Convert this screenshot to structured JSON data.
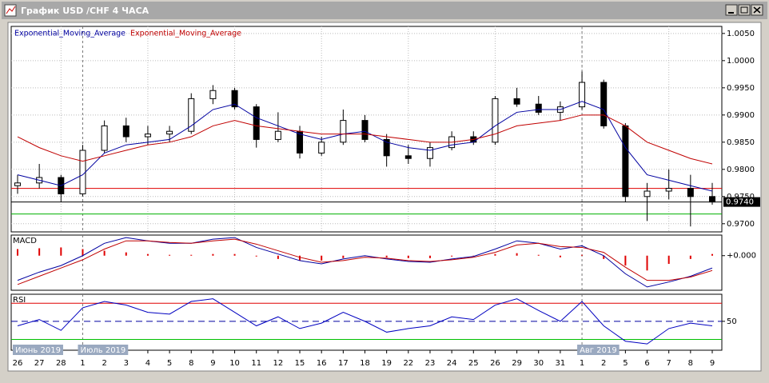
{
  "window": {
    "title": "График USD /CHF  4 ЧАСА"
  },
  "chart_data": [
    {
      "type": "candlestick",
      "categories": [
        "26",
        "27",
        "28",
        "1",
        "2",
        "3",
        "4",
        "5",
        "8",
        "9",
        "10",
        "11",
        "12",
        "15",
        "16",
        "17",
        "18",
        "19",
        "22",
        "23",
        "24",
        "25",
        "26",
        "29",
        "30",
        "31",
        "1",
        "2",
        "5",
        "6",
        "7",
        "8",
        "9"
      ],
      "month_labels": [
        "Июнь 2019",
        null,
        null,
        "Июль 2019",
        null,
        null,
        null,
        null,
        null,
        null,
        null,
        null,
        null,
        null,
        null,
        null,
        null,
        null,
        null,
        null,
        null,
        null,
        null,
        null,
        null,
        null,
        "Авг 2019",
        null,
        null,
        null,
        null,
        null,
        null
      ],
      "open": [
        0.977,
        0.9775,
        0.9785,
        0.9755,
        0.9835,
        0.988,
        0.986,
        0.9865,
        0.987,
        0.993,
        0.9945,
        0.9915,
        0.9855,
        0.987,
        0.983,
        0.985,
        0.989,
        0.9855,
        0.9825,
        0.982,
        0.984,
        0.986,
        0.985,
        0.993,
        0.992,
        0.9905,
        0.9915,
        0.996,
        0.988,
        0.975,
        0.976,
        0.9765,
        0.975
      ],
      "high": [
        0.979,
        0.981,
        0.979,
        0.9845,
        0.989,
        0.9895,
        0.988,
        0.988,
        0.994,
        0.9955,
        0.995,
        0.992,
        0.9905,
        0.988,
        0.986,
        0.991,
        0.99,
        0.9865,
        0.9845,
        0.985,
        0.987,
        0.987,
        0.9935,
        0.995,
        0.9935,
        0.9925,
        0.998,
        0.9965,
        0.9885,
        0.9775,
        0.98,
        0.979,
        0.9775
      ],
      "low": [
        0.9755,
        0.9765,
        0.974,
        0.975,
        0.983,
        0.985,
        0.9845,
        0.985,
        0.9865,
        0.992,
        0.991,
        0.984,
        0.985,
        0.982,
        0.9825,
        0.9845,
        0.985,
        0.9805,
        0.981,
        0.9805,
        0.9835,
        0.9845,
        0.9845,
        0.9915,
        0.99,
        0.989,
        0.991,
        0.9875,
        0.974,
        0.9705,
        0.9745,
        0.9695,
        0.9735
      ],
      "close": [
        0.9775,
        0.9785,
        0.9755,
        0.9835,
        0.988,
        0.986,
        0.9865,
        0.987,
        0.993,
        0.9945,
        0.9915,
        0.9855,
        0.987,
        0.983,
        0.985,
        0.989,
        0.9855,
        0.9825,
        0.982,
        0.984,
        0.986,
        0.985,
        0.993,
        0.992,
        0.9905,
        0.9915,
        0.996,
        0.988,
        0.975,
        0.976,
        0.9765,
        0.975,
        0.974
      ],
      "series": [
        {
          "name": "Exponential_Moving_Average",
          "color": "#0000a0",
          "values": [
            0.979,
            0.978,
            0.977,
            0.979,
            0.983,
            0.9845,
            0.985,
            0.9855,
            0.988,
            0.991,
            0.992,
            0.9895,
            0.988,
            0.9865,
            0.9855,
            0.9865,
            0.987,
            0.985,
            0.984,
            0.9835,
            0.9845,
            0.985,
            0.988,
            0.9905,
            0.991,
            0.991,
            0.9925,
            0.991,
            0.984,
            0.979,
            0.978,
            0.977,
            0.976
          ]
        },
        {
          "name": "Exponential_Moving_Average",
          "color": "#c00000",
          "values": [
            0.986,
            0.984,
            0.9825,
            0.9815,
            0.9825,
            0.9835,
            0.9845,
            0.985,
            0.986,
            0.988,
            0.989,
            0.988,
            0.9875,
            0.987,
            0.9865,
            0.9865,
            0.9865,
            0.986,
            0.9855,
            0.985,
            0.985,
            0.9855,
            0.9865,
            0.988,
            0.9885,
            0.989,
            0.99,
            0.99,
            0.988,
            0.985,
            0.9835,
            0.982,
            0.981
          ]
        }
      ],
      "ylim": [
        0.9685,
        1.0063
      ],
      "yticks": [
        {
          "value": 1.005,
          "label": "1.0050"
        },
        {
          "value": 1.0,
          "label": "1.0000"
        },
        {
          "value": 0.995,
          "label": "0.9950"
        },
        {
          "value": 0.99,
          "label": "0.9900"
        },
        {
          "value": 0.985,
          "label": "0.9850"
        },
        {
          "value": 0.98,
          "label": "0.9800"
        },
        {
          "value": 0.975,
          "label": "0.9750"
        },
        {
          "value": 0.97,
          "label": "0.9700"
        }
      ],
      "levels": [
        {
          "value": 0.9765,
          "color": "#e00000"
        },
        {
          "value": 0.974,
          "color": "#000000"
        },
        {
          "value": 0.9718,
          "color": "#00b000"
        }
      ],
      "last_price": {
        "value": 0.974,
        "label": "0.9740"
      },
      "grid": true
    },
    {
      "type": "macd",
      "label": "MACD",
      "series": [
        {
          "color": "#0000a0",
          "values": [
            -0.003,
            -0.002,
            -0.0012,
            0.0,
            0.0015,
            0.0022,
            0.0018,
            0.0015,
            0.0015,
            0.002,
            0.0022,
            0.001,
            0.0002,
            -0.0006,
            -0.001,
            -0.0004,
            0.0,
            -0.0004,
            -0.0007,
            -0.0008,
            -0.0004,
            -0.0001,
            0.0008,
            0.0018,
            0.0015,
            0.0008,
            0.0012,
            0.0,
            -0.0022,
            -0.0038,
            -0.0032,
            -0.0025,
            -0.0015
          ]
        },
        {
          "color": "#c00000",
          "values": [
            -0.0035,
            -0.0025,
            -0.0015,
            -0.0005,
            0.0008,
            0.0018,
            0.0018,
            0.0016,
            0.0015,
            0.0018,
            0.002,
            0.0014,
            0.0006,
            -0.0002,
            -0.0008,
            -0.0006,
            -0.0002,
            -0.0003,
            -0.0006,
            -0.0007,
            -0.0005,
            -0.0002,
            0.0004,
            0.0013,
            0.0015,
            0.0011,
            0.001,
            0.0004,
            -0.0014,
            -0.003,
            -0.003,
            -0.0026,
            -0.0018
          ]
        }
      ],
      "histogram": {
        "color": "#e00000",
        "values": [
          0.0008,
          0.0009,
          0.001,
          0.0008,
          0.0006,
          0.0004,
          0.0002,
          0.0001,
          0.0001,
          0.0002,
          0.0002,
          -0.0001,
          -0.0004,
          -0.0006,
          -0.0006,
          -0.0003,
          0.0,
          -0.0002,
          -0.0003,
          -0.0003,
          -0.0001,
          0.0,
          0.0002,
          0.0003,
          0.0001,
          -0.0002,
          0.0001,
          -0.0004,
          -0.0012,
          -0.0018,
          -0.001,
          -0.0004,
          0.0002
        ]
      },
      "ylim": [
        -0.0042,
        0.0025
      ],
      "yticks": [
        {
          "value": 0,
          "label": "+0.000"
        }
      ]
    },
    {
      "type": "rsi",
      "label": "RSI",
      "series": [
        {
          "color": "#0000c0",
          "values": [
            45,
            52,
            40,
            65,
            72,
            68,
            60,
            58,
            72,
            75,
            60,
            45,
            55,
            42,
            48,
            60,
            50,
            38,
            42,
            45,
            55,
            52,
            68,
            75,
            62,
            50,
            72,
            45,
            28,
            25,
            42,
            48,
            45
          ]
        }
      ],
      "ylim": [
        18,
        80
      ],
      "yticks": [
        50
      ],
      "levels": [
        {
          "value": 70,
          "color": "#e00000"
        },
        {
          "value": 30,
          "color": "#00c000"
        }
      ]
    }
  ]
}
